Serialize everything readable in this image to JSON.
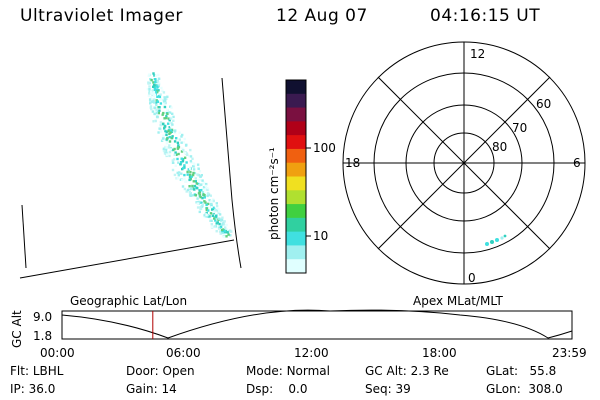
{
  "header": {
    "title": "Ultraviolet Imager",
    "date": "12 Aug 07",
    "time": "04:16:15 UT"
  },
  "colorbar": {
    "unit_label": "photon cm⁻²s⁻¹",
    "ticks": [
      "100",
      "10"
    ],
    "colors": [
      "#101030",
      "#3a1a50",
      "#7a1040",
      "#b00018",
      "#e01010",
      "#f06010",
      "#f0a010",
      "#f0e020",
      "#b0e030",
      "#40d040",
      "#30d0a0",
      "#40e0e0",
      "#a0f0f0",
      "#e0ffff"
    ]
  },
  "polar": {
    "mlt_labels": {
      "top": "12",
      "left": "18",
      "right": "6",
      "bottom": "0"
    },
    "lat_labels": [
      "60",
      "70",
      "80"
    ]
  },
  "orbit": {
    "axis_label": "GC Alt",
    "y_ticks": [
      "9.0",
      "1.8"
    ],
    "left_label": "Geographic Lat/Lon",
    "right_label": "Apex MLat/MLT",
    "x_ticks": [
      "00:00",
      "06:00",
      "12:00",
      "18:00",
      "23:59"
    ],
    "current_time_fraction": 0.178
  },
  "info": {
    "row1": [
      {
        "label": "Flt:",
        "value": "LBHL"
      },
      {
        "label": "Door:",
        "value": "Open"
      },
      {
        "label": "Mode:",
        "value": "Normal"
      },
      {
        "label": "GC Alt:",
        "value": "2.3 Re"
      },
      {
        "label": "GLat:",
        "value": "55.8"
      }
    ],
    "row2": [
      {
        "label": "IP:",
        "value": "36.0"
      },
      {
        "label": "Gain:",
        "value": "14"
      },
      {
        "label": "Dsp:",
        "value": "0.0"
      },
      {
        "label": "Seq:",
        "value": "39"
      },
      {
        "label": "GLon:",
        "value": "308.0"
      }
    ]
  }
}
